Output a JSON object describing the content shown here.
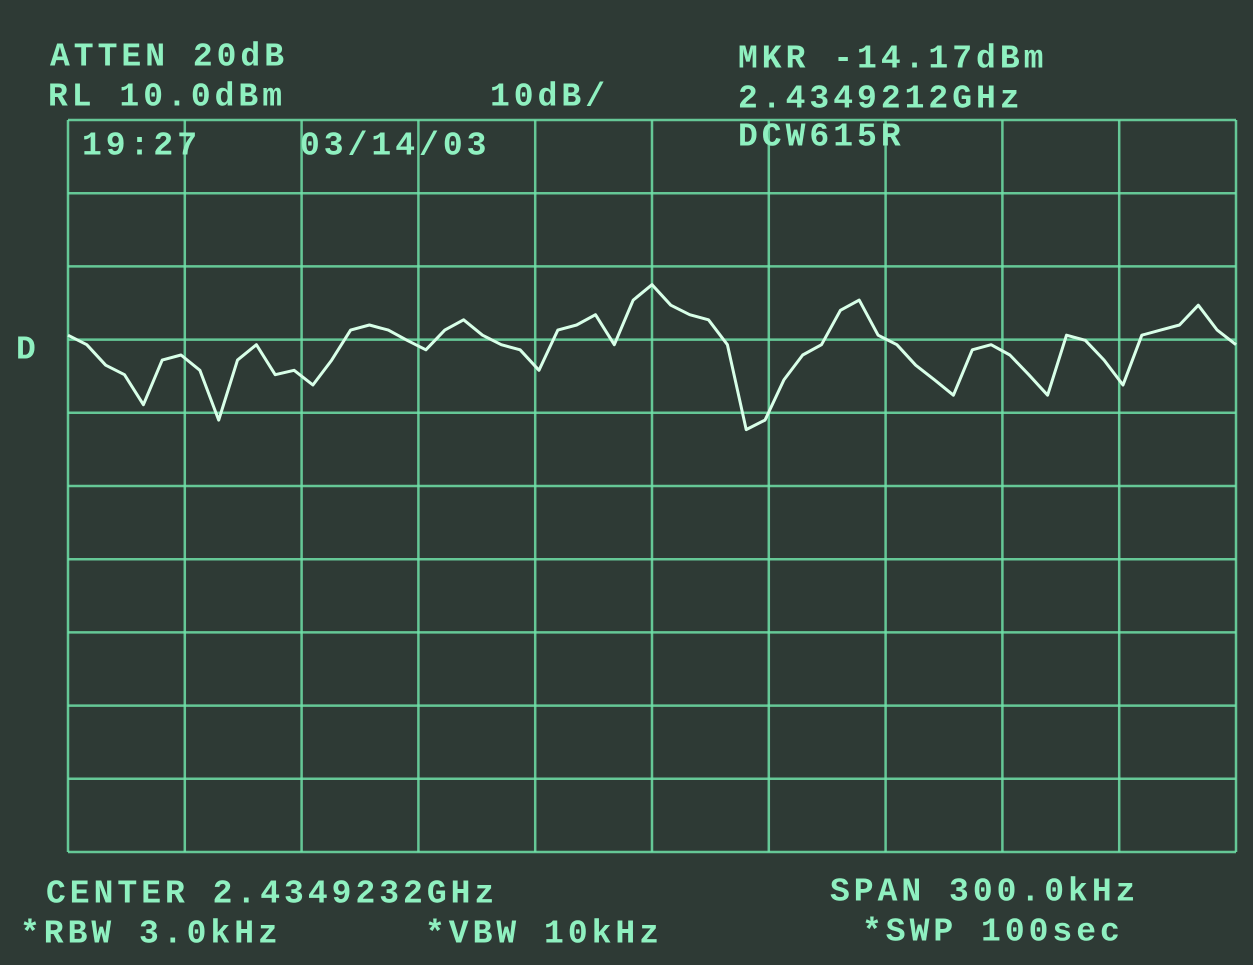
{
  "chart_data": {
    "type": "line",
    "annotations": {
      "atten": "ATTEN 20dB",
      "ref_level": "RL 10.0dBm",
      "scale": "10dB/",
      "marker_level": "MKR -14.17dBm",
      "marker_freq": "2.4349212GHz",
      "device": "DCW615R",
      "time": "19:27",
      "date": "03/14/03",
      "detector": "D",
      "center": "CENTER 2.4349232GHz",
      "span": "SPAN 300.0kHz",
      "rbw": "*RBW 3.0kHz",
      "vbw": "*VBW 10kHz",
      "sweep": "*SWP 100sec"
    },
    "color": "#d8ffe8",
    "grid": true,
    "ylim": [
      -90,
      10
    ],
    "yticks": [
      -90,
      -80,
      -70,
      -60,
      -50,
      -40,
      -30,
      -20,
      -10,
      0,
      10
    ],
    "xlim": [
      2.4347732,
      2.4350732
    ],
    "xticks": [
      2.4347732,
      2.4348032,
      2.4348332,
      2.4348632,
      2.4348932,
      2.4349232,
      2.4349532,
      2.4349832,
      2.4350132,
      2.4350432,
      2.4350732
    ],
    "values": [
      -19.4,
      -20.7,
      -23.5,
      -24.8,
      -28.9,
      -22.8,
      -22.1,
      -24.2,
      -31.0,
      -22.8,
      -20.7,
      -24.8,
      -24.2,
      -26.2,
      -22.8,
      -18.7,
      -18.0,
      -18.7,
      -20.1,
      -21.4,
      -18.7,
      -17.3,
      -19.4,
      -20.7,
      -21.4,
      -24.2,
      -18.7,
      -18.0,
      -16.6,
      -20.7,
      -14.6,
      -12.5,
      -15.3,
      -16.6,
      -17.3,
      -20.7,
      -32.3,
      -31.0,
      -25.5,
      -22.1,
      -20.7,
      -16.0,
      -14.6,
      -19.4,
      -20.7,
      -23.5,
      -25.5,
      -27.6,
      -21.4,
      -20.7,
      -22.1,
      -24.8,
      -27.6,
      -19.4,
      -20.1,
      -22.8,
      -26.2,
      -19.4,
      -18.7,
      -18.0,
      -15.3,
      -18.7,
      -20.7
    ]
  }
}
